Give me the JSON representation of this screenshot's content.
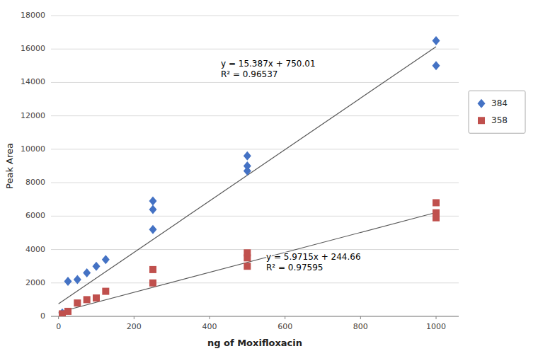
{
  "chart_data": {
    "type": "scatter",
    "xlabel": "ng of Moxifloxacin",
    "ylabel": "Peak Area",
    "xlim": [
      -20,
      1060
    ],
    "ylim": [
      0,
      18000
    ],
    "xticks": [
      0,
      200,
      400,
      600,
      800,
      1000
    ],
    "yticks": [
      0,
      2000,
      4000,
      6000,
      8000,
      10000,
      12000,
      14000,
      16000,
      18000
    ],
    "grid": true,
    "legend": "right",
    "series": [
      {
        "name": "384",
        "color": "#4472C4",
        "marker": "diamond",
        "x": [
          10,
          25,
          50,
          75,
          100,
          125,
          250,
          250,
          250,
          500,
          500,
          500,
          1000,
          1000
        ],
        "values": [
          200,
          2100,
          2200,
          2600,
          3000,
          3400,
          5200,
          6400,
          6900,
          8700,
          9000,
          9600,
          15000,
          16500
        ],
        "trend_x": [
          0,
          1000
        ],
        "trend_values": [
          750.01,
          16137.01
        ],
        "trend_color": "#595959"
      },
      {
        "name": "358",
        "color": "#C0504D",
        "marker": "square",
        "x": [
          10,
          25,
          50,
          75,
          100,
          125,
          250,
          250,
          500,
          500,
          500,
          1000,
          1000,
          1000
        ],
        "values": [
          150,
          300,
          800,
          1000,
          1100,
          1500,
          2000,
          2800,
          3000,
          3500,
          3800,
          5900,
          6200,
          6800
        ],
        "trend_x": [
          0,
          1000
        ],
        "trend_values": [
          244.66,
          6216.16
        ],
        "trend_color": "#595959"
      }
    ],
    "annotations": [
      {
        "lines": [
          "y = 15.387x + 750.01",
          "R² = 0.96537"
        ],
        "x": 430,
        "y": 14800
      },
      {
        "lines": [
          "y = 5.9715x + 244.66",
          "R² = 0.97595"
        ],
        "x": 550,
        "y": 3200
      }
    ]
  }
}
